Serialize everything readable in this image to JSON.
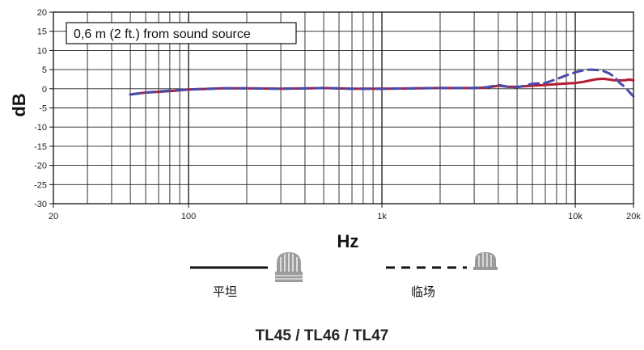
{
  "chart_data": {
    "type": "line",
    "title": "",
    "annotation": "0,6 m (2 ft.) from sound source",
    "xlabel": "Hz",
    "ylabel": "dB",
    "xscale": "log",
    "xlim": [
      20,
      20000
    ],
    "ylim": [
      -30,
      20
    ],
    "grid": true,
    "x_ticks": [
      {
        "value": 20,
        "label": "20"
      },
      {
        "value": 100,
        "label": "100"
      },
      {
        "value": 1000,
        "label": "1k"
      },
      {
        "value": 10000,
        "label": "10k"
      },
      {
        "value": 20000,
        "label": "20k"
      }
    ],
    "y_ticks": [
      {
        "value": 20,
        "label": "20"
      },
      {
        "value": 15,
        "label": "15"
      },
      {
        "value": 10,
        "label": "10"
      },
      {
        "value": 5,
        "label": "5"
      },
      {
        "value": 0,
        "label": "0"
      },
      {
        "value": -5,
        "label": "-5"
      },
      {
        "value": -10,
        "label": "-10"
      },
      {
        "value": -15,
        "label": "-15"
      },
      {
        "value": -20,
        "label": "-20"
      },
      {
        "value": -25,
        "label": "-25"
      },
      {
        "value": -30,
        "label": "-30"
      }
    ],
    "series": [
      {
        "name": "平坦",
        "color": "#b31b34",
        "style": "solid",
        "x": [
          50,
          60,
          70,
          85,
          100,
          150,
          200,
          300,
          500,
          700,
          1000,
          1500,
          2000,
          3000,
          3500,
          4000,
          4500,
          5000,
          6000,
          7000,
          8000,
          9000,
          10000,
          11000,
          12000,
          13000,
          14000,
          15000,
          16000,
          18000,
          19000,
          20000
        ],
        "y": [
          -1.5,
          -1.0,
          -0.8,
          -0.5,
          -0.2,
          0.1,
          0.1,
          0.0,
          0.2,
          0.0,
          0.0,
          0.1,
          0.2,
          0.2,
          0.3,
          0.8,
          0.5,
          0.5,
          0.8,
          1.0,
          1.2,
          1.4,
          1.5,
          1.8,
          2.2,
          2.5,
          2.6,
          2.4,
          2.2,
          2.2,
          2.4,
          2.2
        ]
      },
      {
        "name": "临场",
        "color": "#4a4aa8",
        "style": "dashed",
        "x": [
          50,
          60,
          70,
          85,
          100,
          150,
          200,
          300,
          500,
          700,
          1000,
          1500,
          2000,
          3000,
          3500,
          4000,
          4500,
          5000,
          5500,
          6000,
          7000,
          8000,
          9000,
          10000,
          11000,
          12000,
          13000,
          14000,
          15000,
          16000,
          17000,
          18000,
          19000,
          20000
        ],
        "y": [
          -1.5,
          -1.0,
          -0.7,
          -0.4,
          -0.2,
          0.1,
          0.1,
          0.0,
          0.2,
          0.0,
          0.0,
          0.1,
          0.2,
          0.2,
          0.4,
          1.0,
          0.5,
          0.4,
          0.8,
          1.3,
          1.5,
          2.5,
          3.5,
          4.3,
          4.8,
          5.0,
          4.9,
          4.6,
          4.0,
          3.0,
          1.5,
          0.5,
          -0.8,
          -2.0
        ]
      }
    ]
  },
  "legend": {
    "items": [
      {
        "label": "平坦",
        "style": "solid",
        "icon": "microphone-grille-icon"
      },
      {
        "label": "临场",
        "style": "dashed",
        "icon": "microphone-grille-icon"
      }
    ]
  },
  "model_title": "TL45 / TL46 / TL47"
}
